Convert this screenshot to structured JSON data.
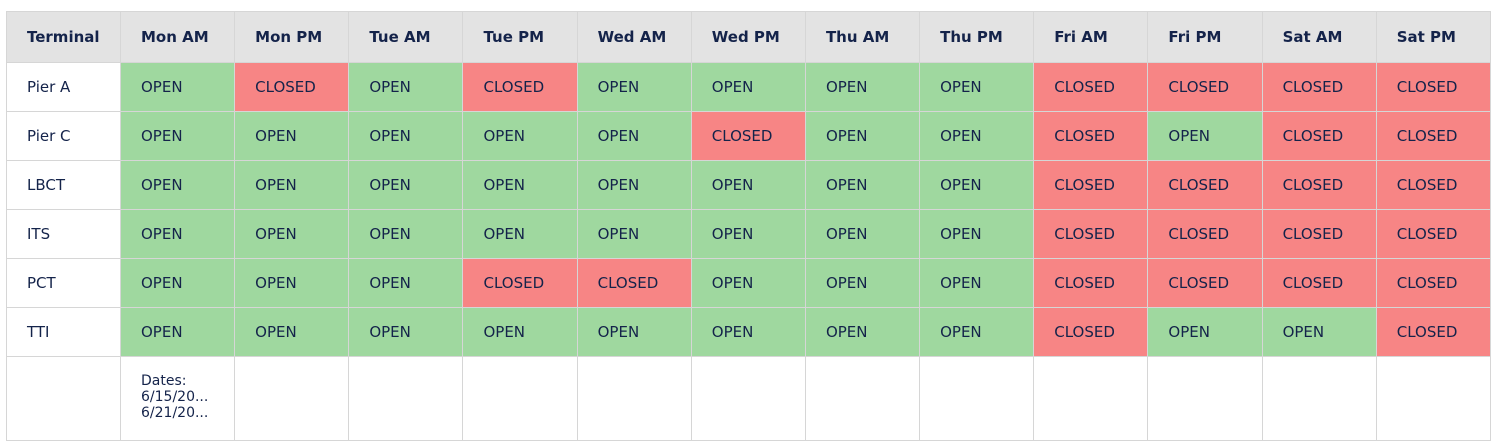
{
  "header": {
    "terminal_label": "Terminal",
    "slots": [
      "Mon AM",
      "Mon PM",
      "Tue AM",
      "Tue PM",
      "Wed AM",
      "Wed PM",
      "Thu AM",
      "Thu PM",
      "Fri AM",
      "Fri PM",
      "Sat AM",
      "Sat PM"
    ]
  },
  "rows": [
    {
      "terminal": "Pier A",
      "status": [
        "OPEN",
        "CLOSED",
        "OPEN",
        "CLOSED",
        "OPEN",
        "OPEN",
        "OPEN",
        "OPEN",
        "CLOSED",
        "CLOSED",
        "CLOSED",
        "CLOSED"
      ]
    },
    {
      "terminal": "Pier C",
      "status": [
        "OPEN",
        "OPEN",
        "OPEN",
        "OPEN",
        "OPEN",
        "CLOSED",
        "OPEN",
        "OPEN",
        "CLOSED",
        "OPEN",
        "CLOSED",
        "CLOSED"
      ]
    },
    {
      "terminal": "LBCT",
      "status": [
        "OPEN",
        "OPEN",
        "OPEN",
        "OPEN",
        "OPEN",
        "OPEN",
        "OPEN",
        "OPEN",
        "CLOSED",
        "CLOSED",
        "CLOSED",
        "CLOSED"
      ]
    },
    {
      "terminal": "ITS",
      "status": [
        "OPEN",
        "OPEN",
        "OPEN",
        "OPEN",
        "OPEN",
        "OPEN",
        "OPEN",
        "OPEN",
        "CLOSED",
        "CLOSED",
        "CLOSED",
        "CLOSED"
      ]
    },
    {
      "terminal": "PCT",
      "status": [
        "OPEN",
        "OPEN",
        "OPEN",
        "CLOSED",
        "CLOSED",
        "OPEN",
        "OPEN",
        "OPEN",
        "CLOSED",
        "CLOSED",
        "CLOSED",
        "CLOSED"
      ]
    },
    {
      "terminal": "TTI",
      "status": [
        "OPEN",
        "OPEN",
        "OPEN",
        "OPEN",
        "OPEN",
        "OPEN",
        "OPEN",
        "OPEN",
        "CLOSED",
        "OPEN",
        "OPEN",
        "CLOSED"
      ]
    }
  ],
  "footer": {
    "dates_label": "Dates:",
    "date_start": "6/15/20...",
    "date_end": "6/21/20..."
  },
  "colors": {
    "open": "#9fd89f",
    "closed": "#f78585",
    "header_bg": "#e3e3e3",
    "text": "#14234a"
  }
}
